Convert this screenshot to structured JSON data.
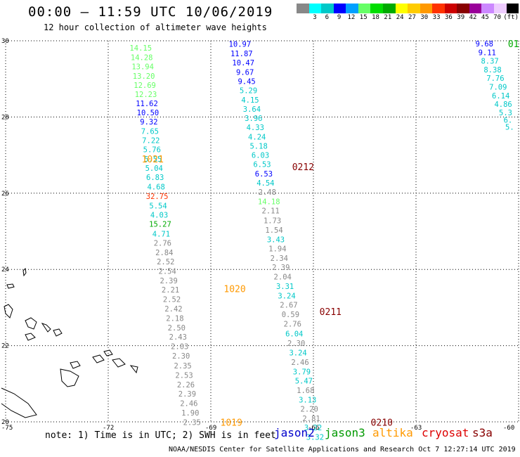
{
  "header": {
    "title": "00:00 – 11:59 UTC 10/06/2019",
    "subtitle": "12 hour collection of altimeter wave heights"
  },
  "legend": {
    "colors": [
      "#888888",
      "#00ffff",
      "#00c8c8",
      "#0000ff",
      "#00a0ff",
      "#66ff66",
      "#00dd00",
      "#00aa00",
      "#ffff00",
      "#ffcc00",
      "#ff9900",
      "#ff3300",
      "#cc0000",
      "#880000",
      "#990099",
      "#cc88ff",
      "#eeccff",
      "#000000"
    ],
    "ticks": [
      "3",
      "6",
      "9",
      "12",
      "15",
      "18",
      "21",
      "24",
      "27",
      "30",
      "33",
      "36",
      "39",
      "42",
      "45",
      "70",
      "(ft)"
    ]
  },
  "axes": {
    "lat_labels": [
      "30",
      "28",
      "26",
      "24",
      "22",
      "20"
    ],
    "lon_labels": [
      "-75",
      "-72",
      "-69",
      "-66",
      "-63",
      "-60"
    ]
  },
  "footer": {
    "note": "note: 1) Time is in UTC; 2) SWH is in feet",
    "missions": [
      {
        "name": "jason2",
        "color": "#0000cc"
      },
      {
        "name": "jason3",
        "color": "#009900"
      },
      {
        "name": "altika",
        "color": "#ff9900"
      },
      {
        "name": "cryosat",
        "color": "#dd0000"
      },
      {
        "name": "s3a",
        "color": "#880000"
      }
    ],
    "credit": "NOAA/NESDIS Center for Satellite Applications and Research    Oct  7 12:27:14 UTC 2019"
  },
  "chart_data": {
    "type": "scatter",
    "lat_range": [
      20,
      30
    ],
    "lon_range": [
      -75,
      -60
    ],
    "tracks": [
      {
        "time_label": "1021",
        "time_lat": 26.9,
        "time_lon": -70.7,
        "time_color": "#ff9900",
        "points": [
          {
            "lat": 29.82,
            "lon": -71.05,
            "v": "14.15",
            "c": "#66ff66"
          },
          {
            "lat": 29.57,
            "lon": -71.02,
            "v": "14.28",
            "c": "#66ff66"
          },
          {
            "lat": 29.33,
            "lon": -70.99,
            "v": "13.94",
            "c": "#66ff66"
          },
          {
            "lat": 29.08,
            "lon": -70.96,
            "v": "13.20",
            "c": "#66ff66"
          },
          {
            "lat": 28.84,
            "lon": -70.93,
            "v": "12.69",
            "c": "#66ff66"
          },
          {
            "lat": 28.6,
            "lon": -70.9,
            "v": "12.23",
            "c": "#66ff66"
          },
          {
            "lat": 28.36,
            "lon": -70.87,
            "v": "11.62",
            "c": "#0000ff"
          },
          {
            "lat": 28.12,
            "lon": -70.84,
            "v": "10.50",
            "c": "#0000ff"
          },
          {
            "lat": 27.88,
            "lon": -70.81,
            "v": "9.32",
            "c": "#0000ff"
          },
          {
            "lat": 27.63,
            "lon": -70.78,
            "v": "7.65",
            "c": "#00c8c8"
          },
          {
            "lat": 27.39,
            "lon": -70.75,
            "v": "7.22",
            "c": "#00c8c8"
          },
          {
            "lat": 27.15,
            "lon": -70.72,
            "v": "5.76",
            "c": "#00c8c8"
          },
          {
            "lat": 26.9,
            "lon": -70.69,
            "v": "5.55",
            "c": "#00c8c8"
          },
          {
            "lat": 26.66,
            "lon": -70.66,
            "v": "5.04",
            "c": "#00c8c8"
          },
          {
            "lat": 26.42,
            "lon": -70.63,
            "v": "6.83",
            "c": "#00c8c8"
          },
          {
            "lat": 26.17,
            "lon": -70.6,
            "v": "4.68",
            "c": "#00c8c8"
          },
          {
            "lat": 25.92,
            "lon": -70.57,
            "v": "32.75",
            "c": "#ff3300"
          },
          {
            "lat": 25.67,
            "lon": -70.54,
            "v": "5.54",
            "c": "#00c8c8"
          },
          {
            "lat": 25.43,
            "lon": -70.51,
            "v": "4.03",
            "c": "#00c8c8"
          },
          {
            "lat": 25.19,
            "lon": -70.48,
            "v": "15.27",
            "c": "#00aa00"
          },
          {
            "lat": 24.94,
            "lon": -70.45,
            "v": "4.71",
            "c": "#00c8c8"
          }
        ]
      },
      {
        "time_label": "1020",
        "time_lat": 23.5,
        "time_lon": -68.3,
        "time_color": "#ff9900",
        "points": [
          {
            "lat": 24.7,
            "lon": -70.41,
            "v": "2.76",
            "c": "#888888"
          },
          {
            "lat": 24.45,
            "lon": -70.36,
            "v": "2.84",
            "c": "#888888"
          },
          {
            "lat": 24.21,
            "lon": -70.32,
            "v": "2.52",
            "c": "#888888"
          },
          {
            "lat": 23.96,
            "lon": -70.27,
            "v": "2.54",
            "c": "#888888"
          },
          {
            "lat": 23.71,
            "lon": -70.23,
            "v": "2.39",
            "c": "#888888"
          },
          {
            "lat": 23.47,
            "lon": -70.18,
            "v": "2.21",
            "c": "#888888"
          },
          {
            "lat": 23.22,
            "lon": -70.14,
            "v": "2.52",
            "c": "#888888"
          },
          {
            "lat": 22.97,
            "lon": -70.09,
            "v": "2.42",
            "c": "#888888"
          },
          {
            "lat": 22.72,
            "lon": -70.05,
            "v": "2.18",
            "c": "#888888"
          },
          {
            "lat": 22.47,
            "lon": -70.0,
            "v": "2.50",
            "c": "#888888"
          },
          {
            "lat": 22.23,
            "lon": -69.96,
            "v": "2.43",
            "c": "#888888"
          },
          {
            "lat": 21.98,
            "lon": -69.91,
            "v": "2.03",
            "c": "#888888"
          },
          {
            "lat": 21.73,
            "lon": -69.87,
            "v": "2.30",
            "c": "#888888"
          },
          {
            "lat": 21.48,
            "lon": -69.82,
            "v": "2.35",
            "c": "#888888"
          },
          {
            "lat": 21.23,
            "lon": -69.78,
            "v": "2.53",
            "c": "#888888"
          },
          {
            "lat": 20.98,
            "lon": -69.73,
            "v": "2.26",
            "c": "#888888"
          },
          {
            "lat": 20.74,
            "lon": -69.69,
            "v": "2.39",
            "c": "#888888"
          },
          {
            "lat": 20.49,
            "lon": -69.64,
            "v": "2.46",
            "c": "#888888"
          },
          {
            "lat": 20.24,
            "lon": -69.6,
            "v": "1.90",
            "c": "#888888"
          },
          {
            "lat": 19.99,
            "lon": -69.55,
            "v": "2.35",
            "c": "#888888"
          }
        ]
      },
      {
        "time_label": "1019",
        "time_lat": 19.99,
        "time_lon": -68.4,
        "time_color": "#ff9900",
        "points": []
      },
      {
        "time_label": "0212",
        "time_lat": 26.7,
        "time_lon": -66.3,
        "time_color": "#880000",
        "points": [
          {
            "lat": 29.92,
            "lon": -68.15,
            "v": "10.97",
            "c": "#0000ff"
          },
          {
            "lat": 29.67,
            "lon": -68.1,
            "v": "11.87",
            "c": "#0000ff"
          },
          {
            "lat": 29.43,
            "lon": -68.05,
            "v": "10.47",
            "c": "#0000ff"
          },
          {
            "lat": 29.18,
            "lon": -68.0,
            "v": "9.67",
            "c": "#0000ff"
          },
          {
            "lat": 28.94,
            "lon": -67.95,
            "v": "9.45",
            "c": "#0000ff"
          },
          {
            "lat": 28.7,
            "lon": -67.9,
            "v": "5.29",
            "c": "#00c8c8"
          },
          {
            "lat": 28.45,
            "lon": -67.85,
            "v": "4.15",
            "c": "#00c8c8"
          },
          {
            "lat": 28.21,
            "lon": -67.8,
            "v": "3.64",
            "c": "#00c8c8"
          },
          {
            "lat": 27.97,
            "lon": -67.75,
            "v": "3.96",
            "c": "#00c8c8"
          },
          {
            "lat": 27.73,
            "lon": -67.7,
            "v": "4.33",
            "c": "#00c8c8"
          },
          {
            "lat": 27.48,
            "lon": -67.65,
            "v": "4.24",
            "c": "#00c8c8"
          },
          {
            "lat": 27.24,
            "lon": -67.6,
            "v": "5.18",
            "c": "#00c8c8"
          },
          {
            "lat": 27.0,
            "lon": -67.55,
            "v": "6.03",
            "c": "#00c8c8"
          },
          {
            "lat": 26.76,
            "lon": -67.5,
            "v": "6.53",
            "c": "#00c8c8"
          },
          {
            "lat": 26.51,
            "lon": -67.45,
            "v": "6.53",
            "c": "#0000ff"
          },
          {
            "lat": 26.27,
            "lon": -67.4,
            "v": "4.54",
            "c": "#00c8c8"
          },
          {
            "lat": 26.03,
            "lon": -67.35,
            "v": "2.48",
            "c": "#888888"
          },
          {
            "lat": 25.78,
            "lon": -67.3,
            "v": "14.18",
            "c": "#66ff66"
          },
          {
            "lat": 25.54,
            "lon": -67.25,
            "v": "2.11",
            "c": "#888888"
          },
          {
            "lat": 25.29,
            "lon": -67.2,
            "v": "1.73",
            "c": "#888888"
          },
          {
            "lat": 25.04,
            "lon": -67.15,
            "v": "1.54",
            "c": "#888888"
          },
          {
            "lat": 24.79,
            "lon": -67.1,
            "v": "3.43",
            "c": "#00c8c8"
          },
          {
            "lat": 24.55,
            "lon": -67.05,
            "v": "1.94",
            "c": "#888888"
          },
          {
            "lat": 24.3,
            "lon": -67.0,
            "v": "2.34",
            "c": "#888888"
          },
          {
            "lat": 24.06,
            "lon": -66.95,
            "v": "2.39",
            "c": "#888888"
          },
          {
            "lat": 23.81,
            "lon": -66.9,
            "v": "2.04",
            "c": "#888888"
          }
        ]
      },
      {
        "time_label": "0211",
        "time_lat": 22.9,
        "time_lon": -65.5,
        "time_color": "#880000",
        "points": [
          {
            "lat": 23.56,
            "lon": -66.83,
            "v": "3.31",
            "c": "#00c8c8"
          },
          {
            "lat": 23.31,
            "lon": -66.78,
            "v": "3.24",
            "c": "#00c8c8"
          },
          {
            "lat": 23.07,
            "lon": -66.72,
            "v": "2.67",
            "c": "#888888"
          },
          {
            "lat": 22.82,
            "lon": -66.67,
            "v": "0.59",
            "c": "#888888"
          },
          {
            "lat": 22.57,
            "lon": -66.61,
            "v": "2.76",
            "c": "#888888"
          },
          {
            "lat": 22.32,
            "lon": -66.56,
            "v": "6.04",
            "c": "#00c8c8"
          },
          {
            "lat": 22.07,
            "lon": -66.5,
            "v": "2.30",
            "c": "#888888"
          },
          {
            "lat": 21.82,
            "lon": -66.45,
            "v": "3.24",
            "c": "#00c8c8"
          },
          {
            "lat": 21.57,
            "lon": -66.39,
            "v": "2.46",
            "c": "#888888"
          },
          {
            "lat": 21.32,
            "lon": -66.34,
            "v": "3.79",
            "c": "#00c8c8"
          },
          {
            "lat": 21.08,
            "lon": -66.28,
            "v": "5.47",
            "c": "#00c8c8"
          },
          {
            "lat": 20.83,
            "lon": -66.23,
            "v": "1.68",
            "c": "#888888"
          },
          {
            "lat": 20.58,
            "lon": -66.17,
            "v": "3.13",
            "c": "#00c8c8"
          },
          {
            "lat": 20.34,
            "lon": -66.12,
            "v": "2.20",
            "c": "#888888"
          },
          {
            "lat": 20.09,
            "lon": -66.06,
            "v": "2.81",
            "c": "#888888"
          },
          {
            "lat": 19.85,
            "lon": -66.01,
            "v": "3.22",
            "c": "#00c8c8"
          },
          {
            "lat": 19.6,
            "lon": -65.95,
            "v": "3.32",
            "c": "#00c8c8"
          }
        ]
      },
      {
        "time_label": "0210",
        "time_lat": 19.99,
        "time_lon": -64.0,
        "time_color": "#880000",
        "points": []
      },
      {
        "time_label": "01",
        "time_lat": 29.93,
        "time_lon": -60.15,
        "time_color": "#00aa00",
        "points": [
          {
            "lat": 29.93,
            "lon": -61.0,
            "v": "9.68",
            "c": "#0000ff"
          },
          {
            "lat": 29.7,
            "lon": -60.92,
            "v": "9.11",
            "c": "#0000ff"
          },
          {
            "lat": 29.47,
            "lon": -60.84,
            "v": "8.37",
            "c": "#00c8c8"
          },
          {
            "lat": 29.24,
            "lon": -60.76,
            "v": "8.38",
            "c": "#00c8c8"
          },
          {
            "lat": 29.02,
            "lon": -60.68,
            "v": "7.76",
            "c": "#00c8c8"
          },
          {
            "lat": 28.79,
            "lon": -60.6,
            "v": "7.09",
            "c": "#00c8c8"
          },
          {
            "lat": 28.56,
            "lon": -60.52,
            "v": "6.14",
            "c": "#00c8c8"
          },
          {
            "lat": 28.34,
            "lon": -60.45,
            "v": "4.86",
            "c": "#00c8c8"
          },
          {
            "lat": 28.12,
            "lon": -60.38,
            "v": "5.3",
            "c": "#00c8c8"
          },
          {
            "lat": 27.92,
            "lon": -60.31,
            "v": "6.",
            "c": "#00c8c8"
          },
          {
            "lat": 27.74,
            "lon": -60.26,
            "v": "5.",
            "c": "#00c8c8"
          }
        ]
      }
    ]
  }
}
